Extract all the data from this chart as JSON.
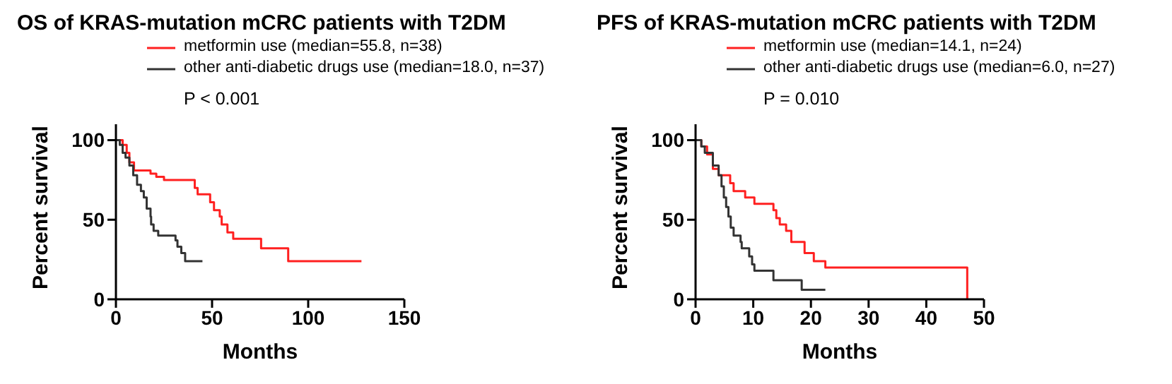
{
  "chart_data": [
    {
      "type": "step",
      "title": "OS of KRAS-mutation mCRC patients with T2DM",
      "xlabel": "Months",
      "ylabel": "Percent survival",
      "xlim": [
        0,
        150
      ],
      "xticks": [
        0,
        50,
        100,
        150
      ],
      "ylim": [
        0,
        110
      ],
      "yticks": [
        0,
        50,
        100
      ],
      "grid": false,
      "legend": "top",
      "annotations": [
        "P < 0.001"
      ],
      "series": [
        {
          "name": "metformin use (median=55.8, n=38)",
          "color": "#ff2020",
          "x": [
            0,
            3.5,
            5.6,
            7,
            9.4,
            18,
            21,
            25,
            41,
            42.5,
            49,
            51,
            54,
            55,
            58,
            61,
            75.5,
            89.6,
            127.7
          ],
          "values": [
            100,
            97,
            92,
            86,
            81,
            79,
            77,
            75,
            70,
            66,
            61,
            56,
            52,
            47,
            42,
            38,
            32,
            24,
            24
          ]
        },
        {
          "name": "other anti-diabetic drugs use (median=18.0, n=37)",
          "color": "#333333",
          "x": [
            0,
            2,
            3.5,
            5,
            7,
            9,
            11,
            13,
            14.5,
            16,
            18,
            18.3,
            19.6,
            22,
            31,
            32,
            34,
            36,
            45
          ],
          "values": [
            100,
            97,
            92,
            89,
            84,
            78,
            72,
            68,
            64,
            57,
            52,
            47,
            43,
            40,
            37,
            33,
            29,
            24,
            24
          ]
        }
      ]
    },
    {
      "type": "step",
      "title": "PFS of KRAS-mutation mCRC patients with T2DM",
      "xlabel": "Months",
      "ylabel": "Percent survival",
      "xlim": [
        0,
        50
      ],
      "xticks": [
        0,
        10,
        20,
        30,
        40,
        50
      ],
      "ylim": [
        0,
        110
      ],
      "yticks": [
        0,
        50,
        100
      ],
      "grid": false,
      "legend": "top",
      "annotations": [
        "P = 0.010"
      ],
      "series": [
        {
          "name": "metformin use (median=14.1, n=24)",
          "color": "#ff2020",
          "x": [
            0,
            1,
            2,
            3,
            4,
            6,
            6.6,
            8.6,
            10.2,
            13.5,
            14,
            14.6,
            15.7,
            16.6,
            18.9,
            20.5,
            22.5,
            47.1
          ],
          "values": [
            100,
            96,
            91,
            82,
            78,
            73,
            68,
            64,
            60,
            56,
            51,
            47,
            43,
            36,
            29,
            24,
            20,
            0
          ]
        },
        {
          "name": "other anti-diabetic drugs use (median=6.0, n=27)",
          "color": "#333333",
          "x": [
            0,
            1,
            1.6,
            3,
            4,
            4.5,
            4.9,
            5.3,
            5.7,
            6.1,
            6.6,
            7.8,
            8,
            9.3,
            9.8,
            10.2,
            13.5,
            18.4,
            22.5
          ],
          "values": [
            100,
            96,
            92,
            84,
            78,
            71,
            64,
            58,
            52,
            45,
            40,
            36,
            32,
            27,
            22,
            18,
            12,
            6,
            6
          ]
        }
      ]
    }
  ]
}
